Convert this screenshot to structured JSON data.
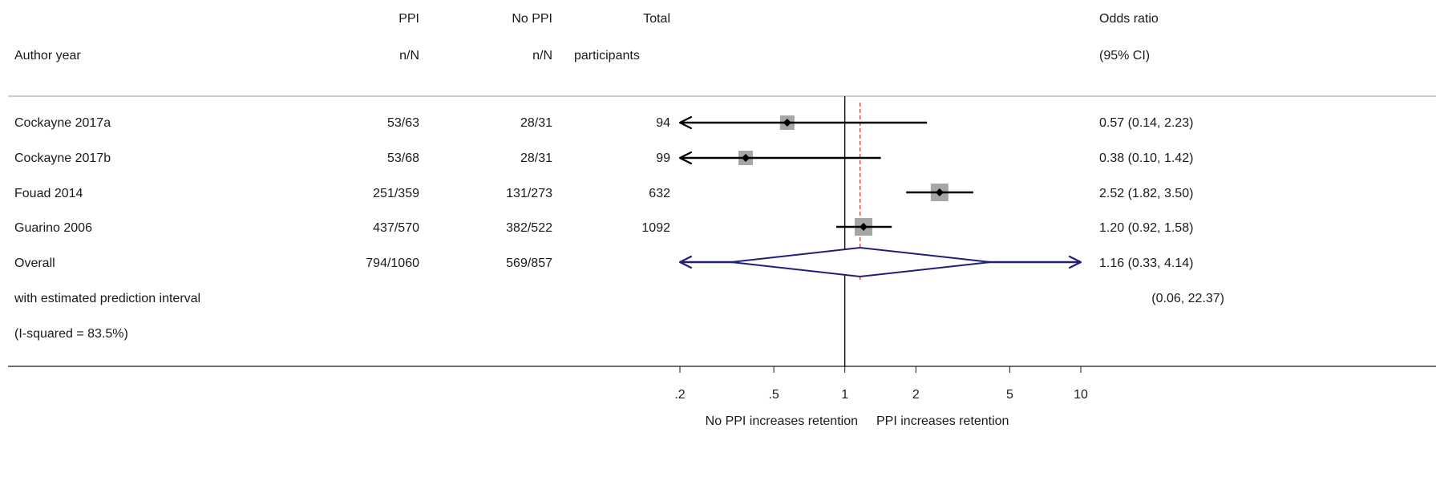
{
  "headers": {
    "author": [
      "",
      "Author year"
    ],
    "ppi": [
      "PPI",
      "n/N"
    ],
    "noppi": [
      "No PPI",
      "n/N"
    ],
    "total": [
      "Total",
      "participants"
    ],
    "or": [
      "Odds ratio",
      "(95% CI)"
    ]
  },
  "chart_data": {
    "type": "forest",
    "scale": "log",
    "null_value": 1,
    "pooled_estimate": 1.16,
    "xlim": [
      0.2,
      10
    ],
    "ticks": [
      {
        "value": 0.2,
        "label": ".2"
      },
      {
        "value": 0.5,
        "label": ".5"
      },
      {
        "value": 1,
        "label": "1"
      },
      {
        "value": 2,
        "label": "2"
      },
      {
        "value": 5,
        "label": "5"
      },
      {
        "value": 10,
        "label": "10"
      }
    ],
    "direction_labels": {
      "left": "No PPI increases retention",
      "right": "PPI increases retention"
    },
    "studies": [
      {
        "name": "Cockayne 2017a",
        "ppi": "53/63",
        "noppi": "28/31",
        "total": "94",
        "or": 0.57,
        "lo": 0.14,
        "hi": 2.23,
        "or_text": "0.57 (0.14, 2.23)",
        "weight": 0.2
      },
      {
        "name": "Cockayne 2017b",
        "ppi": "53/68",
        "noppi": "28/31",
        "total": "99",
        "or": 0.38,
        "lo": 0.1,
        "hi": 1.42,
        "or_text": "0.38 (0.10, 1.42)",
        "weight": 0.2
      },
      {
        "name": "Fouad 2014",
        "ppi": "251/359",
        "noppi": "131/273",
        "total": "632",
        "or": 2.52,
        "lo": 1.82,
        "hi": 3.5,
        "or_text": "2.52 (1.82, 3.50)",
        "weight": 0.3
      },
      {
        "name": "Guarino 2006",
        "ppi": "437/570",
        "noppi": "382/522",
        "total": "1092",
        "or": 1.2,
        "lo": 0.92,
        "hi": 1.58,
        "or_text": "1.20 (0.92, 1.58)",
        "weight": 0.3
      }
    ],
    "overall": {
      "name": "Overall",
      "ppi": "794/1060",
      "noppi": "569/857",
      "or": 1.16,
      "lo": 0.33,
      "hi": 4.14,
      "or_text": "1.16 (0.33, 4.14)",
      "pi_lo": 0.06,
      "pi_hi": 22.37,
      "pi_text": "(0.06, 22.37)",
      "pi_label": "with estimated prediction interval",
      "i2_label": "(I-squared = 83.5%)"
    },
    "colors": {
      "text": "#1a1a1a",
      "ci_line": "#000000",
      "marker_box": "#a6a6a6",
      "point": "#000000",
      "overall": "#1f1f7a",
      "null_line": "#000000",
      "pooled_line": "#c0392b",
      "rule": "#808080"
    }
  }
}
